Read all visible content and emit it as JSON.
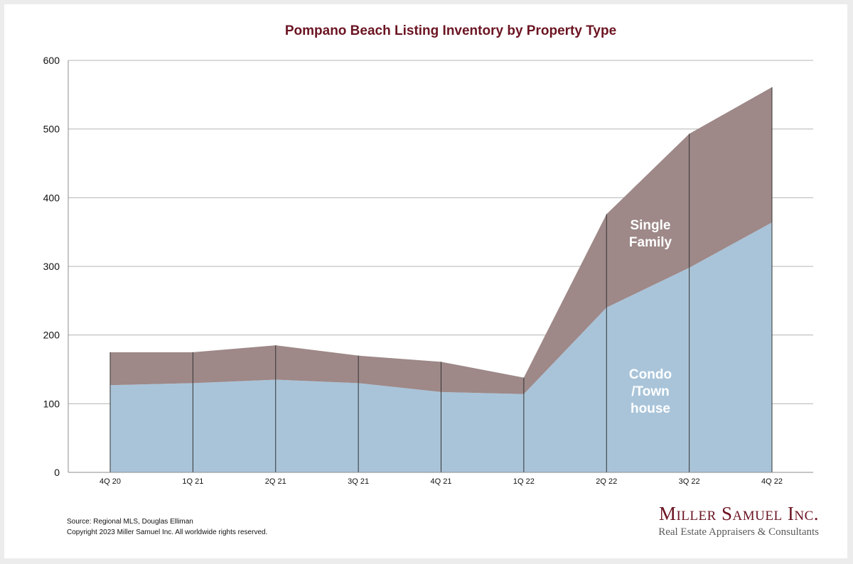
{
  "chart_data": {
    "type": "area",
    "title": "Pompano Beach Listing Inventory by Property Type",
    "categories": [
      "4Q 20",
      "1Q 21",
      "2Q 21",
      "3Q 21",
      "4Q 21",
      "1Q 22",
      "2Q 22",
      "3Q 22",
      "4Q 22"
    ],
    "stacked": true,
    "series": [
      {
        "name": "Condo /Town house",
        "color": "#a9c4d9",
        "values": [
          127,
          130,
          135,
          130,
          117,
          114,
          240,
          298,
          364
        ]
      },
      {
        "name": "Single Family",
        "color": "#9e8888",
        "values": [
          48,
          45,
          50,
          40,
          44,
          24,
          136,
          195,
          197
        ]
      }
    ],
    "ylim": [
      0,
      600
    ],
    "yticks": [
      0,
      100,
      200,
      300,
      400,
      500,
      600
    ],
    "grid": true
  },
  "labels": {
    "single_family_line1": "Single",
    "single_family_line2": "Family",
    "condo_line1": "Condo",
    "condo_line2": "/Town",
    "condo_line3": "house"
  },
  "footer": {
    "source": "Source: Regional MLS, Douglas Elliman",
    "copyright": "Copyright 2023 Miller Samuel Inc.  All worldwide rights reserved."
  },
  "brand": {
    "name": "Miller Samuel Inc.",
    "tagline": "Real Estate Appraisers & Consultants"
  }
}
